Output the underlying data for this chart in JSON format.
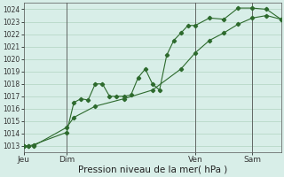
{
  "xlabel": "Pression niveau de la mer( hPa )",
  "ylim": [
    1012.5,
    1024.5
  ],
  "xlim": [
    0,
    108
  ],
  "yticks": [
    1013,
    1014,
    1015,
    1016,
    1017,
    1018,
    1019,
    1020,
    1021,
    1022,
    1023,
    1024
  ],
  "xtick_positions": [
    0,
    18,
    72,
    96
  ],
  "xtick_labels": [
    "Jeu",
    "Dim",
    "Ven",
    "Sam"
  ],
  "vlines": [
    18,
    72,
    96
  ],
  "background_color": "#d8eee8",
  "grid_color": "#b0d4c0",
  "line_color": "#2d6a2d",
  "line1_x": [
    0,
    2,
    4,
    18,
    21,
    24,
    27,
    30,
    33,
    36,
    39,
    42,
    45,
    48,
    51,
    54,
    57,
    60,
    63,
    66,
    69,
    72,
    78,
    84,
    90,
    96,
    102,
    108
  ],
  "line1_y": [
    1013.0,
    1013.0,
    1013.1,
    1014.1,
    1016.5,
    1016.8,
    1016.7,
    1018.0,
    1018.0,
    1017.0,
    1017.0,
    1017.0,
    1017.1,
    1018.5,
    1019.2,
    1018.0,
    1017.5,
    1020.3,
    1021.5,
    1022.1,
    1022.7,
    1022.7,
    1023.3,
    1023.2,
    1024.1,
    1024.1,
    1024.0,
    1023.2
  ],
  "line2_x": [
    0,
    2,
    4,
    18,
    21,
    30,
    42,
    54,
    66,
    72,
    78,
    84,
    90,
    96,
    102,
    108
  ],
  "line2_y": [
    1013.0,
    1013.0,
    1013.0,
    1014.5,
    1015.3,
    1016.2,
    1016.8,
    1017.5,
    1019.2,
    1020.5,
    1021.5,
    1022.1,
    1022.8,
    1023.3,
    1023.5,
    1023.2
  ]
}
